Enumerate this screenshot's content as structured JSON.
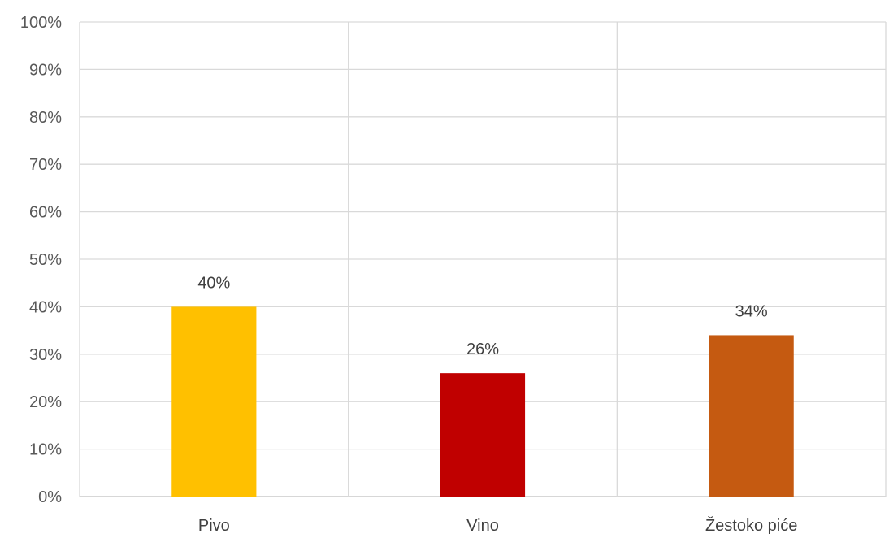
{
  "chart_data": {
    "type": "bar",
    "categories": [
      "Pivo",
      "Vino",
      "Žestoko piće"
    ],
    "values": [
      40,
      26,
      34
    ],
    "data_labels": [
      "40%",
      "26%",
      "34%"
    ],
    "colors": [
      "#FFC000",
      "#C00000",
      "#C55A11"
    ],
    "ylim": [
      0,
      100
    ],
    "y_ticks": [
      "0%",
      "10%",
      "20%",
      "30%",
      "40%",
      "50%",
      "60%",
      "70%",
      "80%",
      "90%",
      "100%"
    ],
    "title": "",
    "xlabel": "",
    "ylabel": "",
    "grid": true,
    "legend": "none"
  }
}
